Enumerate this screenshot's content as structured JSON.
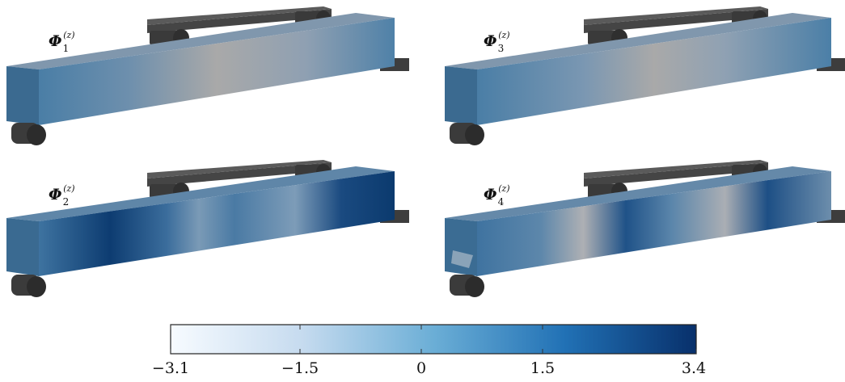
{
  "panels": [
    {
      "symbol": "Φ",
      "index": "1",
      "superscript": "(z)"
    },
    {
      "symbol": "Φ",
      "index": "3",
      "superscript": "(z)"
    },
    {
      "symbol": "Φ",
      "index": "2",
      "superscript": "(z)"
    },
    {
      "symbol": "Φ",
      "index": "4",
      "superscript": "(z)"
    }
  ],
  "colorbar": {
    "min": -3.1,
    "max": 3.4,
    "ticks": [
      "−3.1",
      "−1.5",
      "0",
      "1.5",
      "3.4"
    ],
    "colors": [
      "#f7fbff",
      "#c6dbef",
      "#6baed6",
      "#2171b5",
      "#08306b"
    ]
  },
  "colors": {
    "support": "#3d3d3d",
    "beam_neutral": "#a9a9a9",
    "beam_medium": "#4f7fa3",
    "beam_dark": "#0a3a6e"
  }
}
